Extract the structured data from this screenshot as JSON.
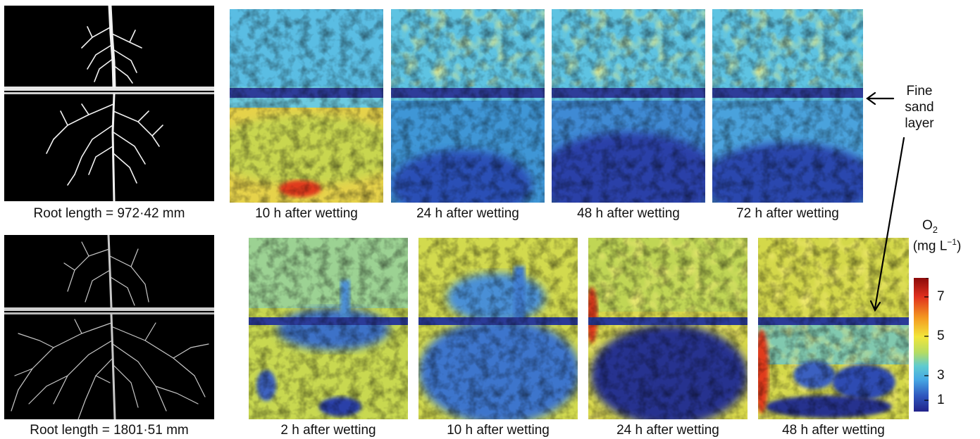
{
  "top_row": {
    "root_caption": "Root length = 972·42 mm",
    "captions": [
      "10 h after wetting",
      "24 h after wetting",
      "48 h after wetting",
      "72 h after wetting"
    ]
  },
  "bottom_row": {
    "root_caption": "Root length = 1801·51 mm",
    "captions": [
      "2 h after wetting",
      "10 h after wetting",
      "24 h after wetting",
      "48 h after wetting"
    ]
  },
  "annotation": {
    "line1": "Fine",
    "line2": "sand",
    "line3": "layer"
  },
  "colorbar": {
    "title_main": "O",
    "title_sub": "2",
    "unit_open": "(mg L",
    "unit_sup": "−1",
    "unit_close": ")",
    "ticks": [
      "7",
      "5",
      "3",
      "1"
    ],
    "colors": [
      "#8b0a0a",
      "#e0301e",
      "#f49a20",
      "#f2e63a",
      "#b4dc64",
      "#5fcbd0",
      "#46a8e4",
      "#2f58bf",
      "#22238a"
    ]
  }
}
